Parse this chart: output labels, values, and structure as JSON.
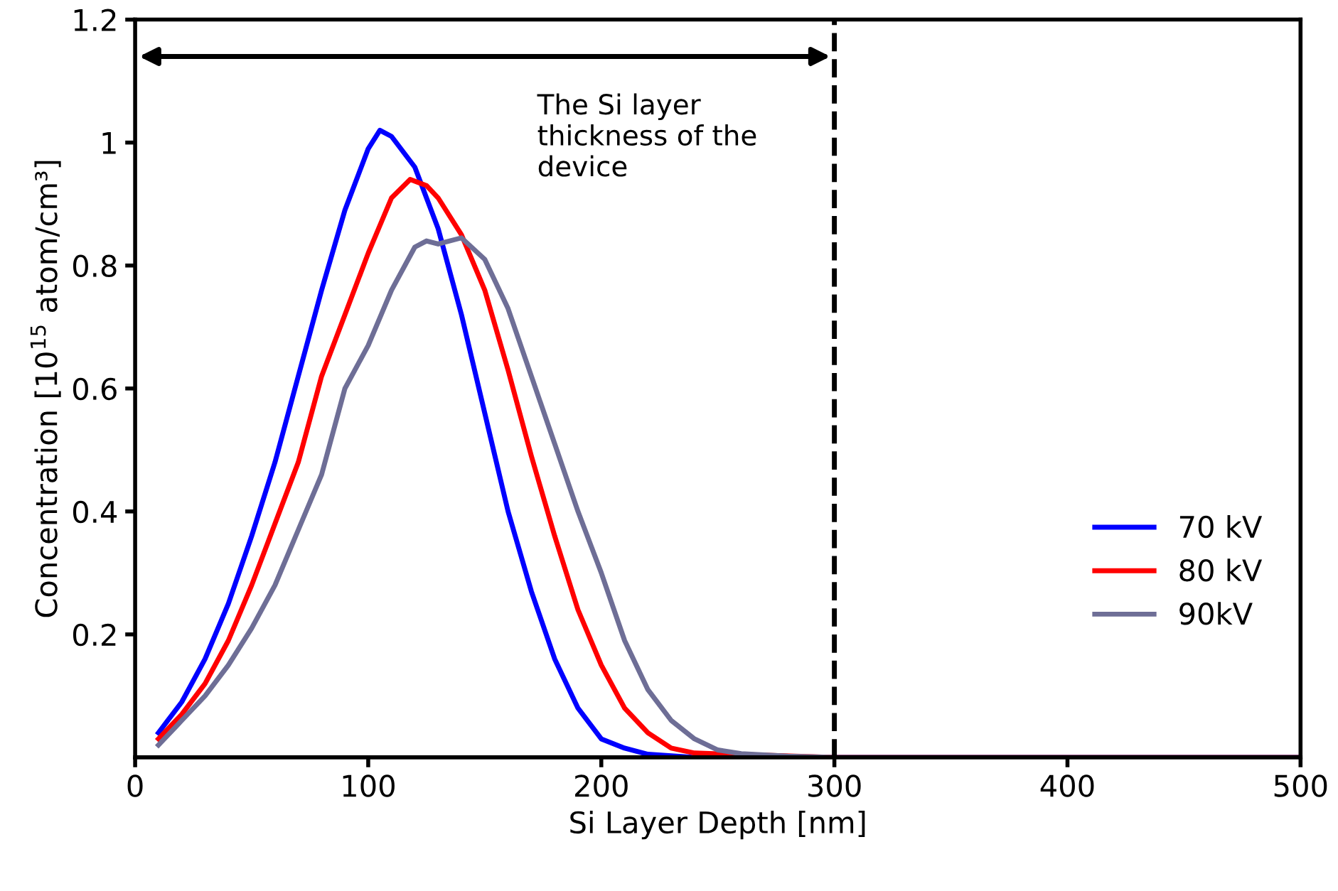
{
  "chart_data": {
    "type": "line",
    "xlabel": "Si Layer Depth [nm]",
    "ylabel": "Concentration [10$^{15}$ atom/cm³]",
    "xlim": [
      0,
      500
    ],
    "xticks": [
      0,
      100,
      200,
      300,
      400,
      500
    ],
    "ylim": [
      0,
      1.2
    ],
    "yticks": [
      0.2,
      0.4,
      0.6,
      0.8,
      1,
      1.2
    ],
    "grid": false,
    "legend": "right",
    "marker": "none",
    "line_style": "solid",
    "ref_lines": [
      {
        "axis": "x",
        "value": 300,
        "color": "#000000",
        "line_style": "dashed"
      }
    ],
    "annotations": [
      "The Si layer thickness of the device"
    ],
    "series": [
      {
        "name": "70 kV",
        "color": "#0000ff",
        "x": [
          10,
          20,
          30,
          40,
          50,
          60,
          70,
          80,
          90,
          100,
          105,
          110,
          120,
          130,
          140,
          150,
          160,
          170,
          180,
          190,
          200,
          210,
          220,
          240,
          500
        ],
        "values": [
          0.04,
          0.09,
          0.16,
          0.25,
          0.36,
          0.48,
          0.62,
          0.76,
          0.89,
          0.99,
          1.02,
          1.01,
          0.96,
          0.86,
          0.72,
          0.56,
          0.4,
          0.27,
          0.16,
          0.08,
          0.03,
          0.015,
          0.005,
          0,
          0
        ]
      },
      {
        "name": "80 kV",
        "color": "#ff0000",
        "x": [
          10,
          20,
          30,
          40,
          50,
          60,
          70,
          80,
          90,
          100,
          110,
          118,
          125,
          130,
          140,
          150,
          160,
          170,
          180,
          190,
          200,
          210,
          220,
          230,
          240,
          300,
          500
        ],
        "values": [
          0.03,
          0.07,
          0.12,
          0.19,
          0.28,
          0.38,
          0.48,
          0.62,
          0.72,
          0.82,
          0.91,
          0.94,
          0.93,
          0.91,
          0.85,
          0.76,
          0.63,
          0.49,
          0.36,
          0.24,
          0.15,
          0.08,
          0.04,
          0.015,
          0.007,
          0,
          0
        ]
      },
      {
        "name": "90kV",
        "color": "#6e6e96",
        "x": [
          10,
          20,
          30,
          40,
          50,
          60,
          70,
          80,
          90,
          100,
          110,
          120,
          125,
          130,
          140,
          150,
          160,
          170,
          180,
          190,
          200,
          210,
          220,
          230,
          240,
          250,
          260,
          280,
          300,
          500
        ],
        "values": [
          0.02,
          0.06,
          0.1,
          0.15,
          0.21,
          0.28,
          0.37,
          0.46,
          0.6,
          0.67,
          0.76,
          0.83,
          0.84,
          0.835,
          0.845,
          0.81,
          0.73,
          0.62,
          0.51,
          0.4,
          0.3,
          0.19,
          0.11,
          0.06,
          0.03,
          0.012,
          0.006,
          0.002,
          0,
          0
        ]
      }
    ]
  }
}
